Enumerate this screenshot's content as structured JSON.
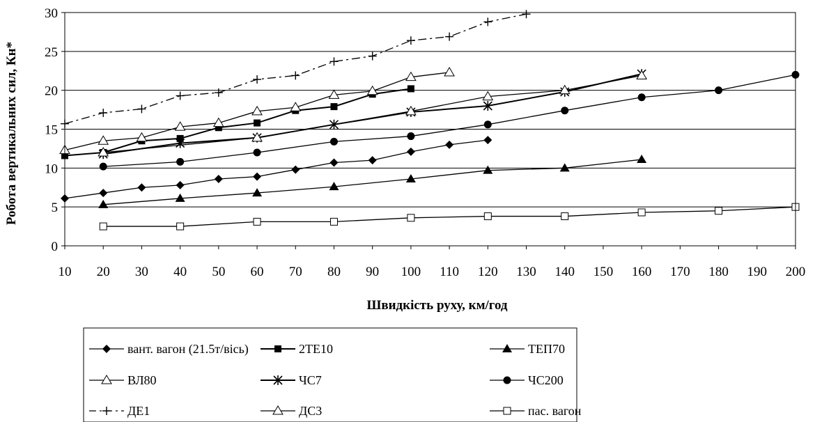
{
  "chart_data": {
    "type": "line",
    "title": "",
    "xlabel": "Швидкість руху, км/год",
    "ylabel": "Робота вертикальних сил, Кн*",
    "xlim": [
      10,
      200
    ],
    "ylim": [
      0,
      30
    ],
    "x_ticks": [
      10,
      20,
      30,
      40,
      50,
      60,
      70,
      80,
      90,
      100,
      110,
      120,
      130,
      140,
      150,
      160,
      170,
      180,
      190,
      200
    ],
    "y_ticks": [
      0,
      5,
      10,
      15,
      20,
      25,
      30
    ],
    "grid": "horizontal",
    "legend_position": "bottom",
    "series": [
      {
        "name": "вант. вагон (21.5т/вісь)",
        "marker": "diamond-filled",
        "x": [
          10,
          20,
          30,
          40,
          50,
          60,
          70,
          80,
          90,
          100,
          110,
          120
        ],
        "y": [
          6.1,
          6.8,
          7.5,
          7.8,
          8.6,
          8.9,
          9.8,
          10.7,
          11.0,
          12.1,
          13.0,
          13.6
        ]
      },
      {
        "name": "2ТЕ10",
        "marker": "square-filled",
        "x": [
          10,
          20,
          30,
          40,
          50,
          60,
          70,
          80,
          90,
          100
        ],
        "y": [
          11.6,
          12.0,
          13.5,
          13.8,
          15.2,
          15.8,
          17.4,
          17.9,
          19.5,
          20.2
        ]
      },
      {
        "name": "ТЕП70",
        "marker": "triangle-filled",
        "x": [
          20,
          40,
          60,
          80,
          100,
          120,
          140,
          160
        ],
        "y": [
          5.3,
          6.1,
          6.8,
          7.6,
          8.6,
          9.7,
          10.0,
          11.1
        ]
      },
      {
        "name": "ВЛ80",
        "marker": "triangle-open",
        "x": [
          10,
          20,
          30,
          40,
          50,
          60,
          70,
          80,
          90,
          100,
          110
        ],
        "y": [
          12.3,
          13.5,
          13.9,
          15.3,
          15.8,
          17.3,
          17.8,
          19.4,
          19.9,
          21.7,
          22.3
        ]
      },
      {
        "name": "ЧС7",
        "marker": "asterisk",
        "x": [
          20,
          40,
          60,
          80,
          100,
          120,
          140,
          160
        ],
        "y": [
          11.8,
          13.2,
          13.9,
          15.6,
          17.2,
          18.0,
          19.8,
          22.1
        ]
      },
      {
        "name": "ЧС200",
        "marker": "circle-filled",
        "x": [
          20,
          40,
          60,
          80,
          100,
          120,
          140,
          160,
          180,
          200
        ],
        "y": [
          10.2,
          10.8,
          12.0,
          13.4,
          14.1,
          15.6,
          17.4,
          19.1,
          20.0,
          22.0
        ]
      },
      {
        "name": "ДЕ1",
        "marker": "plus",
        "x": [
          10,
          20,
          30,
          40,
          50,
          60,
          70,
          80,
          90,
          100,
          110,
          120,
          130
        ],
        "y": [
          15.7,
          17.1,
          17.6,
          19.3,
          19.7,
          21.4,
          21.9,
          23.7,
          24.4,
          26.4,
          26.9,
          28.8,
          29.8
        ]
      },
      {
        "name": "ДС3",
        "marker": "triangle-open",
        "x": [
          20,
          60,
          100,
          120,
          140,
          160
        ],
        "y": [
          12.0,
          13.9,
          17.3,
          19.2,
          20.0,
          21.9
        ]
      },
      {
        "name": "пас. вагон",
        "marker": "square-open",
        "x": [
          20,
          40,
          60,
          80,
          100,
          120,
          140,
          160,
          180,
          200
        ],
        "y": [
          2.5,
          2.5,
          3.1,
          3.1,
          3.6,
          3.8,
          3.8,
          4.3,
          4.5,
          5.0
        ]
      }
    ]
  }
}
